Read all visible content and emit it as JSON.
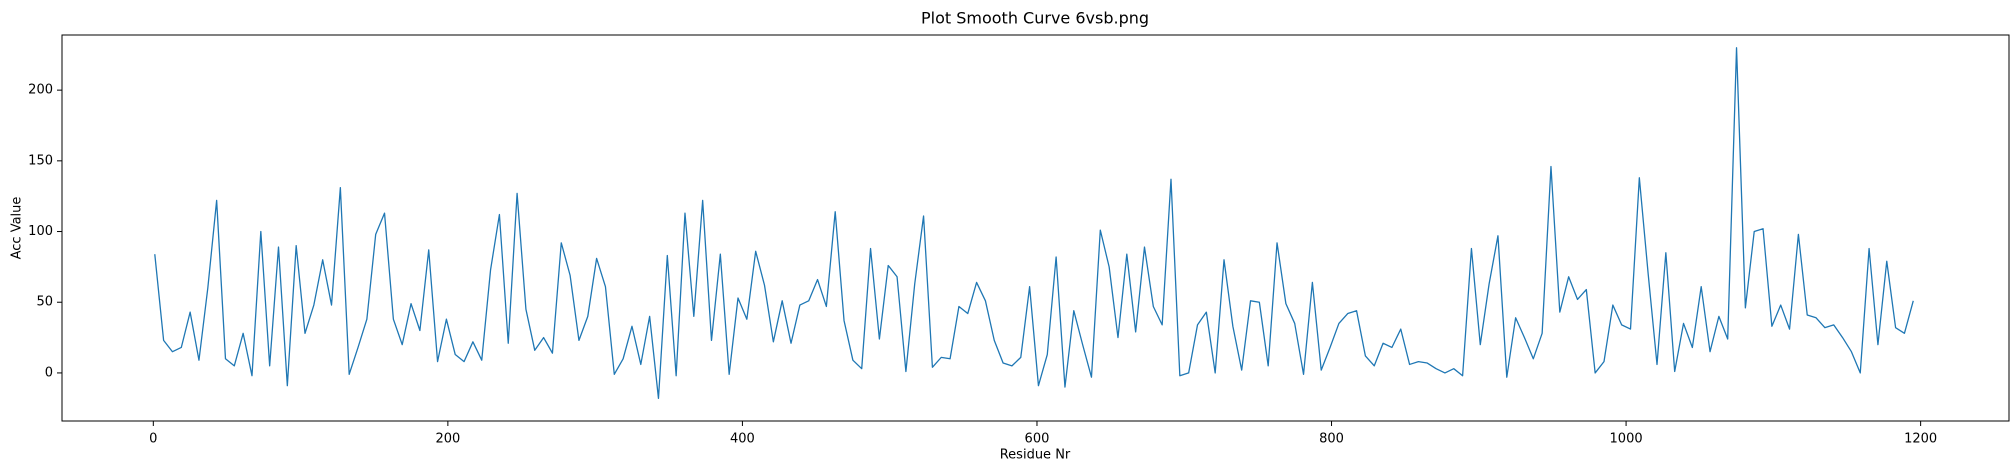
{
  "chart_data": {
    "type": "line",
    "title": "Plot Smooth Curve 6vsb.png",
    "x_label": "Residue Nr",
    "y_label": "Acc Value",
    "x": [
      1,
      7,
      13,
      19,
      25,
      31,
      37,
      43,
      49,
      55,
      61,
      67,
      73,
      79,
      85,
      91,
      97,
      103,
      109,
      115,
      121,
      127,
      133,
      139,
      145,
      151,
      157,
      163,
      169,
      175,
      181,
      187,
      193,
      199,
      205,
      211,
      217,
      223,
      229,
      235,
      241,
      247,
      253,
      259,
      265,
      271,
      277,
      283,
      289,
      295,
      301,
      307,
      313,
      319,
      325,
      331,
      337,
      343,
      349,
      355,
      361,
      367,
      373,
      379,
      385,
      391,
      397,
      403,
      409,
      415,
      421,
      427,
      433,
      439,
      445,
      451,
      457,
      463,
      469,
      475,
      481,
      487,
      493,
      499,
      505,
      511,
      517,
      523,
      529,
      535,
      541,
      547,
      553,
      559,
      565,
      571,
      577,
      583,
      589,
      595,
      601,
      607,
      613,
      619,
      625,
      631,
      637,
      643,
      649,
      655,
      661,
      667,
      673,
      679,
      685,
      691,
      697,
      703,
      709,
      715,
      721,
      727,
      733,
      739,
      745,
      751,
      757,
      763,
      769,
      775,
      781,
      787,
      793,
      799,
      805,
      811,
      817,
      823,
      829,
      835,
      841,
      847,
      853,
      859,
      865,
      871,
      877,
      883,
      889,
      895,
      901,
      907,
      913,
      919,
      925,
      931,
      937,
      943,
      949,
      955,
      961,
      967,
      973,
      979,
      985,
      991,
      997,
      1003,
      1009,
      1015,
      1021,
      1027,
      1033,
      1039,
      1045,
      1051,
      1057,
      1063,
      1069,
      1075,
      1081,
      1087,
      1093,
      1099,
      1105,
      1111,
      1117,
      1123,
      1129,
      1135,
      1141,
      1147,
      1153,
      1159,
      1165,
      1171,
      1177,
      1183,
      1189,
      1195
    ],
    "series": [
      {
        "name": "Acc Value",
        "color": "#1f77b4",
        "values": [
          84,
          23,
          15,
          18,
          43,
          9,
          60,
          122,
          10,
          5,
          28,
          -2,
          100,
          5,
          89,
          -9,
          90,
          28,
          48,
          80,
          48,
          131,
          -1,
          18,
          38,
          98,
          113,
          38,
          20,
          49,
          30,
          87,
          8,
          38,
          13,
          8,
          22,
          9,
          73,
          112,
          21,
          127,
          45,
          16,
          25,
          14,
          92,
          69,
          23,
          40,
          81,
          61,
          -1,
          10,
          33,
          6,
          40,
          -18,
          83,
          -2,
          113,
          40,
          122,
          23,
          84,
          -1,
          53,
          38,
          86,
          62,
          22,
          51,
          21,
          48,
          51,
          66,
          47,
          114,
          37,
          9,
          3,
          88,
          24,
          76,
          68,
          1,
          63,
          111,
          4,
          11,
          10,
          47,
          42,
          64,
          51,
          23,
          7,
          5,
          11,
          61,
          -9,
          13,
          82,
          -10,
          44,
          20,
          -3,
          101,
          75,
          25,
          84,
          29,
          89,
          47,
          34,
          137,
          -2,
          0,
          34,
          43,
          0,
          80,
          33,
          2,
          51,
          50,
          5,
          92,
          49,
          35,
          -1,
          64,
          2,
          18,
          35,
          42,
          44,
          12,
          5,
          21,
          18,
          31,
          6,
          8,
          7,
          3,
          0,
          3,
          -2,
          88,
          20,
          63,
          97,
          -3,
          39,
          25,
          10,
          28,
          146,
          43,
          68,
          52,
          59,
          0,
          8,
          48,
          34,
          31,
          138,
          70,
          6,
          85,
          1,
          35,
          18,
          61,
          15,
          40,
          24,
          230,
          46,
          100,
          102,
          33,
          48,
          31,
          98,
          41,
          39,
          32,
          34,
          25,
          15,
          0,
          88,
          20,
          79,
          32,
          28,
          51
        ]
      }
    ],
    "xlim": [
      -62,
      1260
    ],
    "ylim": [
      -34,
      239
    ],
    "xticks": [
      0,
      200,
      400,
      600,
      800,
      1000,
      1200
    ],
    "yticks": [
      0,
      50,
      100,
      150,
      200
    ],
    "grid": false
  }
}
